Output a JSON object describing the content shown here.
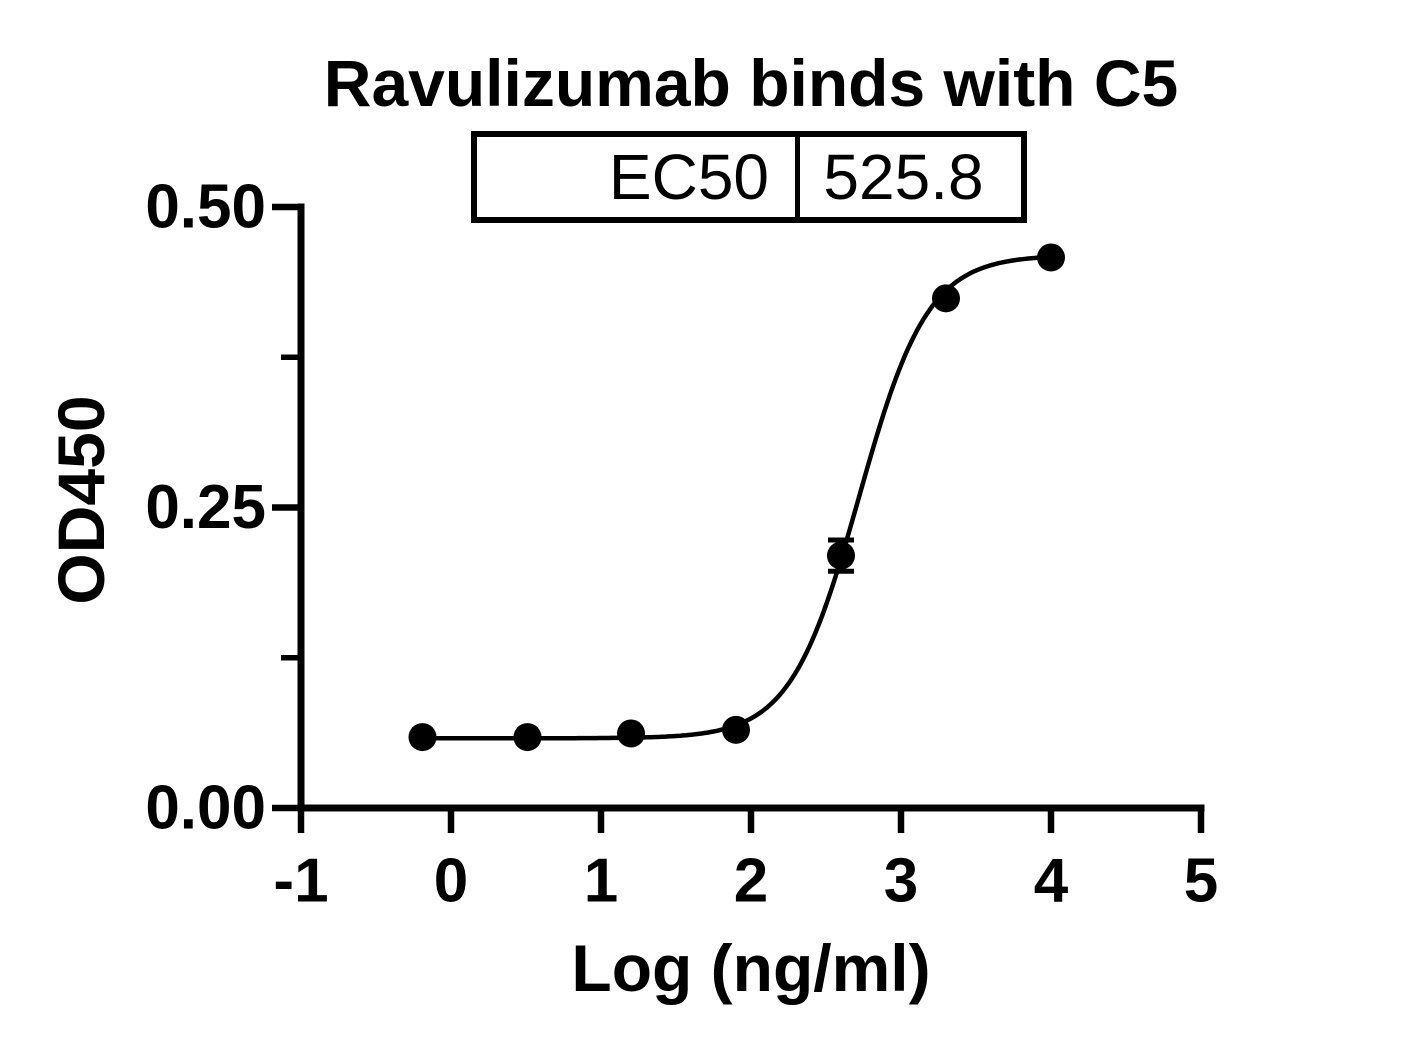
{
  "figure": {
    "title": "Ravulizumab binds with C5",
    "ec50_table": {
      "label": "EC50",
      "value": "525.8"
    }
  },
  "chart_data": {
    "type": "scatter",
    "title": "Ravulizumab binds with C5",
    "xlabel": "Log (ng/ml)",
    "ylabel": "OD450",
    "xlim": [
      -1,
      5
    ],
    "ylim": [
      0.0,
      0.5
    ],
    "x_ticks": [
      -1,
      0,
      1,
      2,
      3,
      4,
      5
    ],
    "x_tick_labels": [
      "-1",
      "0",
      "1",
      "2",
      "3",
      "4",
      "5"
    ],
    "y_ticks": [
      0.0,
      0.25,
      0.5
    ],
    "y_tick_labels": [
      "0.00",
      "0.25",
      "0.50"
    ],
    "y_minor_ticks": [
      0.125,
      0.375
    ],
    "grid": false,
    "legend": "none",
    "marker": {
      "shape": "circle",
      "color": "#000000",
      "radius_px": 14
    },
    "line_color": "#000000",
    "background_color": "#ffffff",
    "series": [
      {
        "x": [
          -0.19,
          0.51,
          1.2,
          1.9,
          2.6,
          3.3,
          4.0
        ],
        "y": [
          0.059,
          0.059,
          0.062,
          0.065,
          0.21,
          0.424,
          0.458
        ],
        "y_err": [
          0,
          0,
          0,
          0,
          0.013,
          0,
          0
        ]
      }
    ],
    "fit_curve": {
      "model": "four_parameter_logistic",
      "bottom": 0.058,
      "top": 0.46,
      "log_ec50": 2.7208,
      "hill_slope": 1.9,
      "ec50": 525.8
    }
  }
}
